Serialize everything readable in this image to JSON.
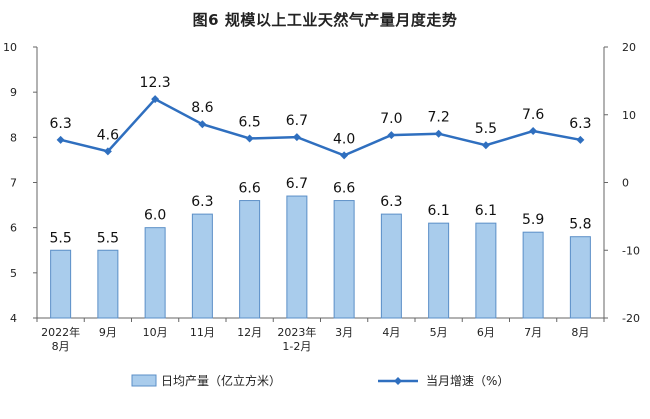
{
  "chart_data": {
    "type": "bar+line",
    "title": "图6 规模以上工业天然气产量月度走势",
    "categories": [
      [
        "2022年",
        "8月"
      ],
      [
        "9月"
      ],
      [
        "10月"
      ],
      [
        "11月"
      ],
      [
        "12月"
      ],
      [
        "2023年",
        "1-2月"
      ],
      [
        "3月"
      ],
      [
        "4月"
      ],
      [
        "5月"
      ],
      [
        "6月"
      ],
      [
        "7月"
      ],
      [
        "8月"
      ]
    ],
    "series": [
      {
        "name": "日均产量（亿立方米）",
        "type": "bar",
        "axis": "left",
        "values": [
          5.5,
          5.5,
          6.0,
          6.3,
          6.6,
          6.7,
          6.6,
          6.3,
          6.1,
          6.1,
          5.9,
          5.8
        ],
        "labels": [
          "5.5",
          "5.5",
          "6.0",
          "6.3",
          "6.6",
          "6.7",
          "6.6",
          "6.3",
          "6.1",
          "6.1",
          "5.9",
          "5.8"
        ],
        "color": "#a9ccec",
        "edge_color": "#5b8fc7"
      },
      {
        "name": "当月增速（%）",
        "type": "line",
        "axis": "right",
        "values": [
          6.3,
          4.6,
          12.3,
          8.6,
          6.5,
          6.7,
          4.0,
          7.0,
          7.2,
          5.5,
          7.6,
          6.3
        ],
        "labels": [
          "6.3",
          "4.6",
          "12.3",
          "8.6",
          "6.5",
          "6.7",
          "4.0",
          "7.0",
          "7.2",
          "5.5",
          "7.6",
          "6.3"
        ],
        "color": "#2f6fbf"
      }
    ],
    "y_left": {
      "range": [
        4,
        10
      ],
      "ticks": [
        "4",
        "5",
        "6",
        "7",
        "8",
        "9",
        "10"
      ]
    },
    "y_right": {
      "range": [
        -20,
        20
      ],
      "ticks": [
        "-20",
        "-10",
        "0",
        "10",
        "20"
      ]
    },
    "grid": false,
    "legend_position": "bottom"
  }
}
